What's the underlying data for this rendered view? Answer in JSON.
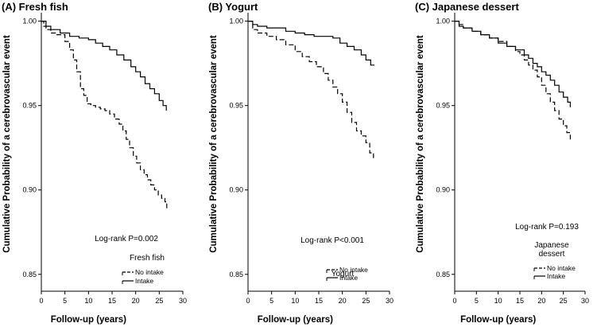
{
  "chart_data": [
    {
      "type": "line",
      "title": "(A) Fresh fish",
      "xlabel": "Follow-up (years)",
      "ylabel": "Cumulative Probability of a cerebrovascular event",
      "xlim": [
        0,
        30
      ],
      "ylim": [
        0.84,
        1.005
      ],
      "xticks": [
        0,
        5,
        10,
        15,
        20,
        25,
        30
      ],
      "xtick_labels": [
        "0",
        "5",
        "10",
        "15",
        "20",
        "25",
        "30"
      ],
      "yticks": [
        0.85,
        0.9,
        0.95,
        1.0
      ],
      "ytick_labels": [
        "0.85",
        "0.90",
        "0.95",
        "1.00"
      ],
      "annotation": "Log-rank P=0.002",
      "legend_title": "Fresh fish",
      "legend": [
        "No intake",
        "Intake"
      ],
      "grid": false,
      "series": [
        {
          "name": "No intake",
          "style": "dashed",
          "x": [
            0,
            0.5,
            1,
            2,
            3,
            5,
            6,
            6.8,
            7.5,
            8.3,
            9,
            9.7,
            10.5,
            11.5,
            12.5,
            13.5,
            14.5,
            15.5,
            16.5,
            17.3,
            18,
            18.7,
            19.5,
            20.2,
            21,
            21.8,
            22.5,
            23.2,
            24,
            24.8,
            25.5,
            26.2,
            26.6
          ],
          "y": [
            1.0,
            0.997,
            0.995,
            0.993,
            0.992,
            0.988,
            0.983,
            0.977,
            0.97,
            0.96,
            0.956,
            0.951,
            0.95,
            0.949,
            0.948,
            0.947,
            0.945,
            0.942,
            0.939,
            0.935,
            0.93,
            0.925,
            0.92,
            0.916,
            0.912,
            0.909,
            0.906,
            0.903,
            0.9,
            0.897,
            0.895,
            0.893,
            0.889
          ]
        },
        {
          "name": "Intake",
          "style": "solid",
          "x": [
            0,
            1,
            2,
            4,
            6,
            8,
            10,
            11.5,
            13,
            14.5,
            16,
            17.5,
            19,
            20,
            21,
            22,
            23,
            24,
            25,
            25.8,
            26.5
          ],
          "y": [
            1.0,
            0.997,
            0.995,
            0.993,
            0.991,
            0.99,
            0.989,
            0.987,
            0.985,
            0.983,
            0.98,
            0.977,
            0.973,
            0.97,
            0.967,
            0.963,
            0.96,
            0.957,
            0.953,
            0.95,
            0.947
          ]
        }
      ]
    },
    {
      "type": "line",
      "title": "(B) Yogurt",
      "xlabel": "Follow-up (years)",
      "ylabel": "Cumulative Probability of a cerebrovascular event",
      "xlim": [
        0,
        30
      ],
      "ylim": [
        0.84,
        1.005
      ],
      "xticks": [
        0,
        5,
        10,
        15,
        20,
        25,
        30
      ],
      "xtick_labels": [
        "0",
        "5",
        "10",
        "15",
        "20",
        "25",
        "30"
      ],
      "yticks": [
        0.85,
        0.9,
        0.95,
        1.0
      ],
      "ytick_labels": [
        "0.85",
        "0.90",
        "0.95",
        "1.00"
      ],
      "annotation": "Log-rank P<0.001",
      "legend_title": "Yogurt",
      "legend": [
        "No intake",
        "Intake"
      ],
      "grid": false,
      "series": [
        {
          "name": "No intake",
          "style": "dashed",
          "x": [
            0,
            1,
            2,
            4,
            6,
            8,
            10,
            11.5,
            13,
            14.5,
            16,
            17,
            18,
            19,
            20,
            21,
            22,
            23,
            24,
            25,
            25.8,
            26.6
          ],
          "y": [
            1.0,
            0.995,
            0.993,
            0.991,
            0.989,
            0.986,
            0.982,
            0.979,
            0.976,
            0.973,
            0.969,
            0.965,
            0.961,
            0.957,
            0.952,
            0.946,
            0.94,
            0.935,
            0.932,
            0.928,
            0.922,
            0.918
          ]
        },
        {
          "name": "Intake",
          "style": "solid",
          "x": [
            0,
            1,
            2,
            4,
            6,
            8,
            10,
            12,
            14,
            16,
            18,
            19.5,
            21,
            22.5,
            24,
            25,
            26,
            26.8
          ],
          "y": [
            1.0,
            0.998,
            0.997,
            0.996,
            0.996,
            0.994,
            0.993,
            0.992,
            0.991,
            0.991,
            0.99,
            0.987,
            0.985,
            0.983,
            0.98,
            0.977,
            0.974,
            0.974
          ]
        }
      ]
    },
    {
      "type": "line",
      "title": "(C) Japanese dessert",
      "xlabel": "Follow-up (years)",
      "ylabel": "Cumulative Probability of a cerebrovascular event",
      "xlim": [
        0,
        30
      ],
      "ylim": [
        0.84,
        1.005
      ],
      "xticks": [
        0,
        5,
        10,
        15,
        20,
        25,
        30
      ],
      "xtick_labels": [
        "0",
        "5",
        "10",
        "15",
        "20",
        "25",
        "30"
      ],
      "yticks": [
        0.85,
        0.9,
        0.95,
        1.0
      ],
      "ytick_labels": [
        "0.85",
        "0.90",
        "0.95",
        "1.00"
      ],
      "annotation": "Log-rank P=0.193",
      "legend_title": "Japanese dessert",
      "legend": [
        "No intake",
        "Intake"
      ],
      "grid": false,
      "series": [
        {
          "name": "No intake",
          "style": "dashed",
          "x": [
            0,
            1,
            2,
            4,
            6,
            8,
            10,
            12,
            14,
            15,
            16,
            17,
            18,
            19,
            20,
            21,
            22,
            23,
            24,
            25,
            25.8,
            26.6
          ],
          "y": [
            1.0,
            0.998,
            0.996,
            0.994,
            0.992,
            0.99,
            0.988,
            0.985,
            0.982,
            0.98,
            0.977,
            0.974,
            0.971,
            0.967,
            0.962,
            0.957,
            0.952,
            0.947,
            0.942,
            0.938,
            0.934,
            0.929
          ]
        },
        {
          "name": "Intake",
          "style": "solid",
          "x": [
            0,
            1,
            2,
            4,
            6,
            8,
            10,
            12,
            14,
            16,
            17,
            18,
            19,
            20,
            21,
            22,
            23,
            24,
            25,
            26,
            26.6
          ],
          "y": [
            1.0,
            0.997,
            0.996,
            0.994,
            0.992,
            0.99,
            0.987,
            0.985,
            0.983,
            0.98,
            0.978,
            0.975,
            0.973,
            0.97,
            0.968,
            0.965,
            0.962,
            0.958,
            0.955,
            0.952,
            0.949
          ]
        }
      ]
    }
  ]
}
